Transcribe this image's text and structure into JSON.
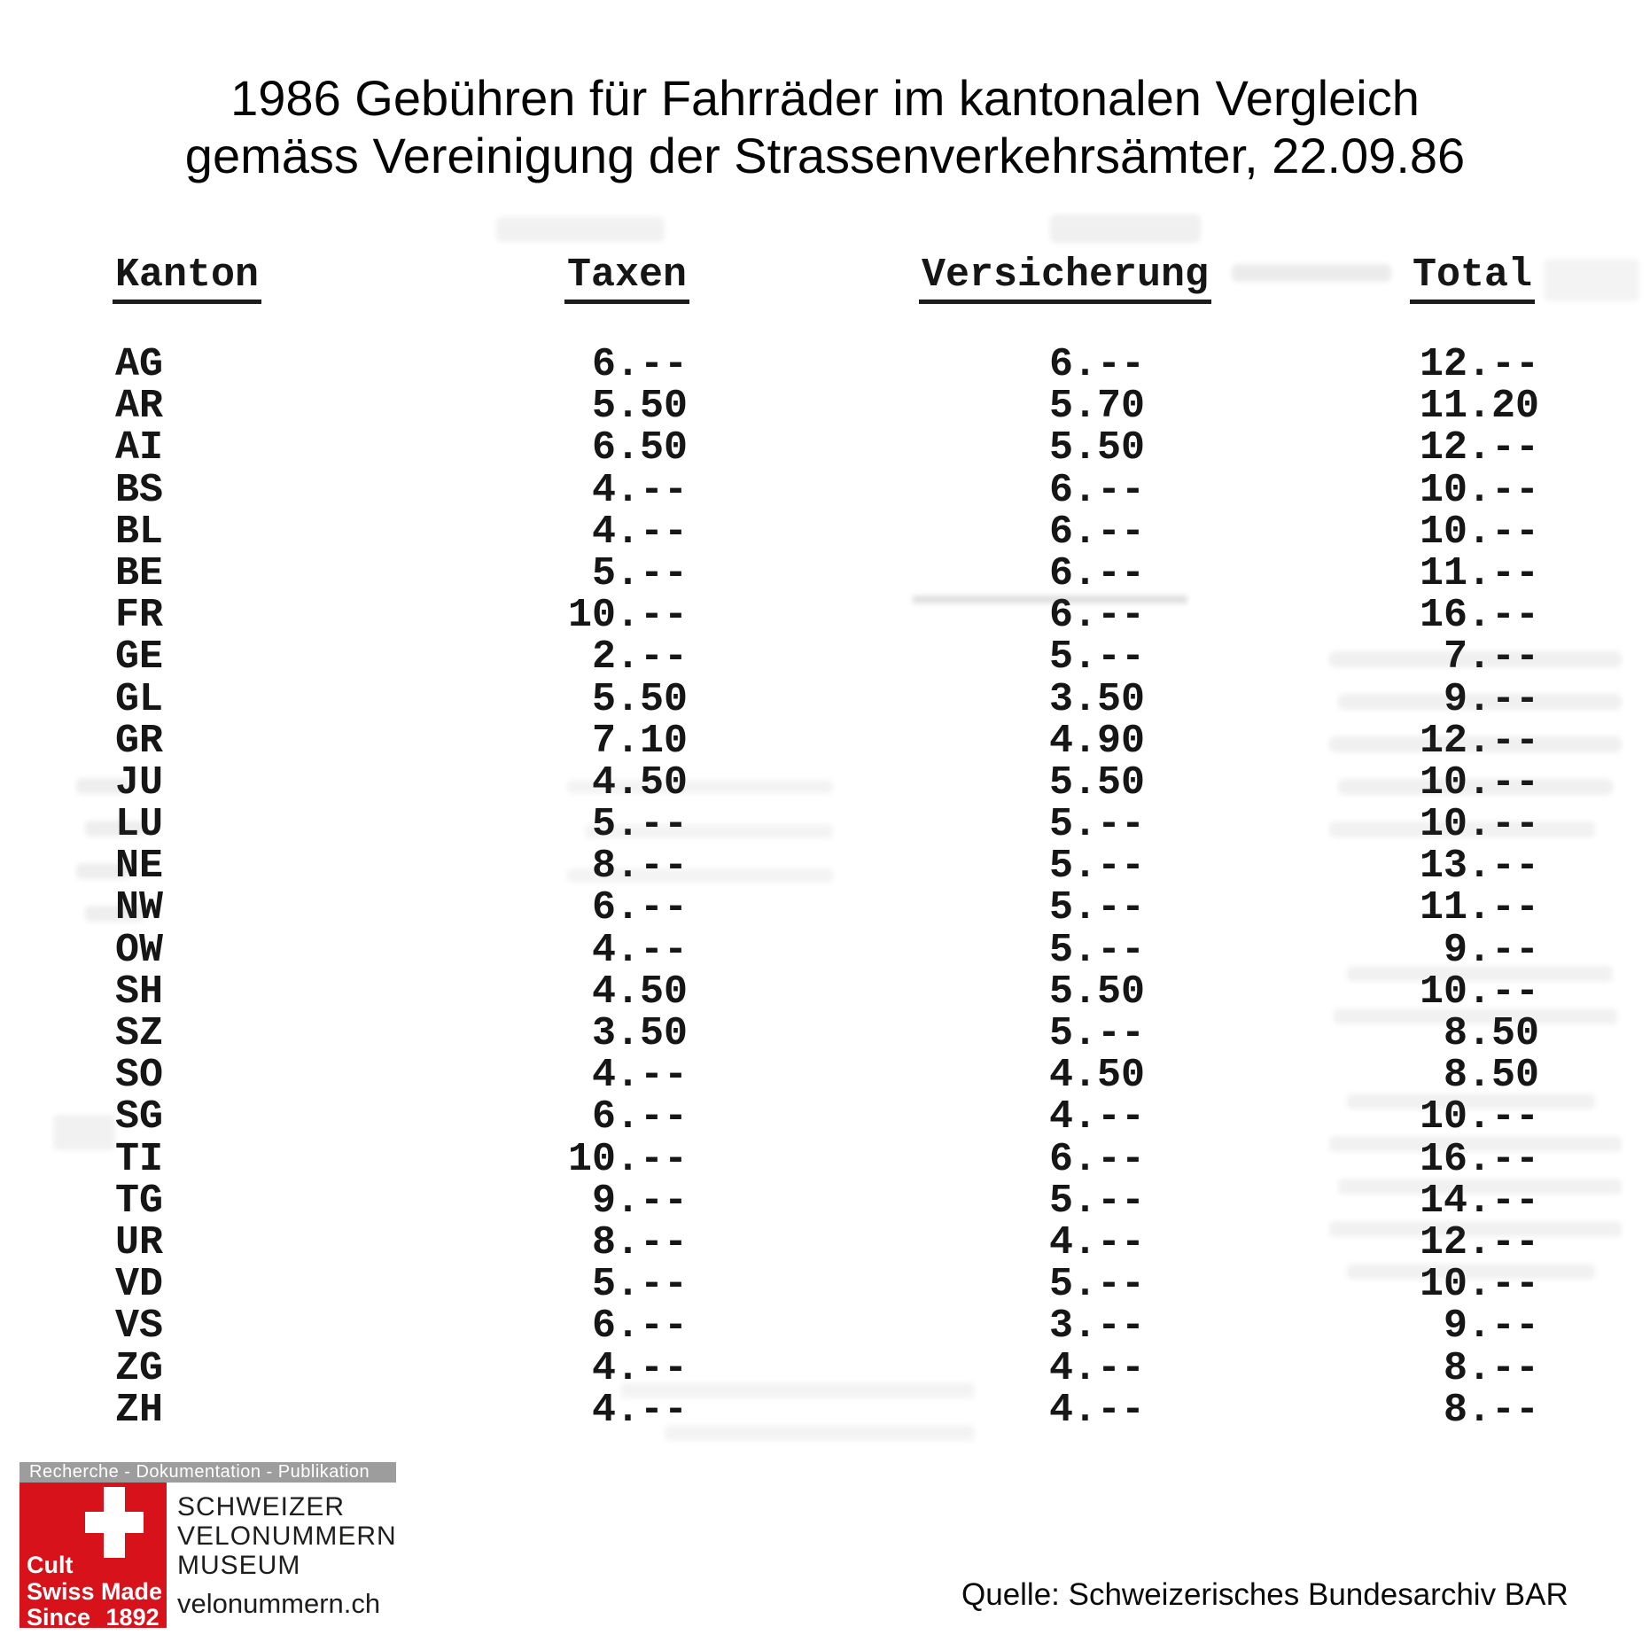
{
  "title": {
    "line1": "1986 Gebühren für Fahrräder im kantonalen Vergleich",
    "line2": "gemäss Vereinigung der Strassenverkehrsämter, 22.09.86"
  },
  "table": {
    "headers": {
      "kanton": "Kanton",
      "taxen": "Taxen",
      "versicherung": "Versicherung",
      "total": "Total"
    },
    "rows": [
      {
        "kanton": "AG",
        "taxen": "6.--",
        "versicherung": "6.--",
        "total": "12.--"
      },
      {
        "kanton": "AR",
        "taxen": "5.50",
        "versicherung": "5.70",
        "total": "11.20"
      },
      {
        "kanton": "AI",
        "taxen": "6.50",
        "versicherung": "5.50",
        "total": "12.--"
      },
      {
        "kanton": "BS",
        "taxen": "4.--",
        "versicherung": "6.--",
        "total": "10.--"
      },
      {
        "kanton": "BL",
        "taxen": "4.--",
        "versicherung": "6.--",
        "total": "10.--"
      },
      {
        "kanton": "BE",
        "taxen": "5.--",
        "versicherung": "6.--",
        "total": "11.--"
      },
      {
        "kanton": "FR",
        "taxen": "10.--",
        "versicherung": "6.--",
        "total": "16.--"
      },
      {
        "kanton": "GE",
        "taxen": "2.--",
        "versicherung": "5.--",
        "total": "7.--"
      },
      {
        "kanton": "GL",
        "taxen": "5.50",
        "versicherung": "3.50",
        "total": "9.--"
      },
      {
        "kanton": "GR",
        "taxen": "7.10",
        "versicherung": "4.90",
        "total": "12.--"
      },
      {
        "kanton": "JU",
        "taxen": "4.50",
        "versicherung": "5.50",
        "total": "10.--"
      },
      {
        "kanton": "LU",
        "taxen": "5.--",
        "versicherung": "5.--",
        "total": "10.--"
      },
      {
        "kanton": "NE",
        "taxen": "8.--",
        "versicherung": "5.--",
        "total": "13.--"
      },
      {
        "kanton": "NW",
        "taxen": "6.--",
        "versicherung": "5.--",
        "total": "11.--"
      },
      {
        "kanton": "OW",
        "taxen": "4.--",
        "versicherung": "5.--",
        "total": "9.--"
      },
      {
        "kanton": "SH",
        "taxen": "4.50",
        "versicherung": "5.50",
        "total": "10.--"
      },
      {
        "kanton": "SZ",
        "taxen": "3.50",
        "versicherung": "5.--",
        "total": "8.50"
      },
      {
        "kanton": "SO",
        "taxen": "4.--",
        "versicherung": "4.50",
        "total": "8.50"
      },
      {
        "kanton": "SG",
        "taxen": "6.--",
        "versicherung": "4.--",
        "total": "10.--"
      },
      {
        "kanton": "TI",
        "taxen": "10.--",
        "versicherung": "6.--",
        "total": "16.--"
      },
      {
        "kanton": "TG",
        "taxen": "9.--",
        "versicherung": "5.--",
        "total": "14.--"
      },
      {
        "kanton": "UR",
        "taxen": "8.--",
        "versicherung": "4.--",
        "total": "12.--"
      },
      {
        "kanton": "VD",
        "taxen": "5.--",
        "versicherung": "5.--",
        "total": "10.--"
      },
      {
        "kanton": "VS",
        "taxen": "6.--",
        "versicherung": "3.--",
        "total": "9.--"
      },
      {
        "kanton": "ZG",
        "taxen": "4.--",
        "versicherung": "4.--",
        "total": "8.--"
      },
      {
        "kanton": "ZH",
        "taxen": "4.--",
        "versicherung": "4.--",
        "total": "8.--"
      }
    ]
  },
  "footer": {
    "tagline": "Recherche - Dokumentation - Publikation",
    "badge": {
      "line1": "Cult",
      "line2": "Swiss Made",
      "line3": "Since 1892"
    },
    "museum": {
      "line1": "SCHWEIZER",
      "line2": "VELONUMMERN",
      "line3": "MUSEUM",
      "website": "velonummern.ch"
    },
    "source": "Quelle: Schweizerisches Bundesarchiv BAR"
  },
  "colors": {
    "swiss_red": "#d8121a",
    "tagline_gray": "#9d9d9d",
    "ink": "#161616"
  }
}
